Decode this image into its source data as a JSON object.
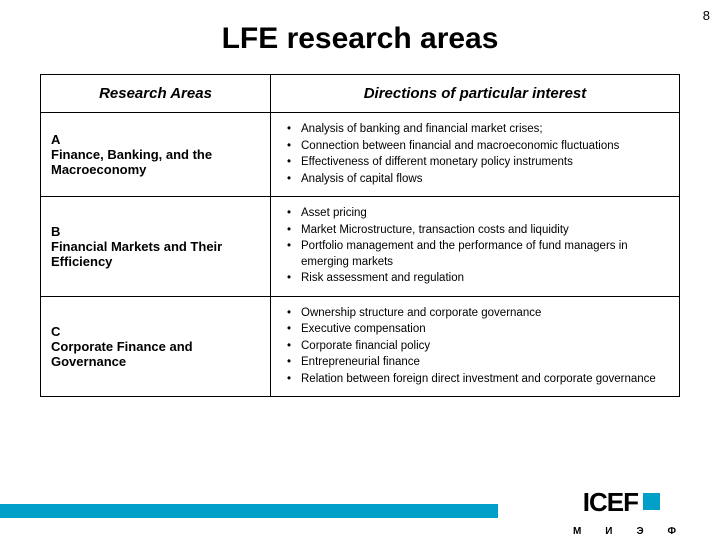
{
  "page_number": "8",
  "title": "LFE research areas",
  "table": {
    "header_left": "Research Areas",
    "header_right": "Directions of particular interest",
    "rows": [
      {
        "letter": "A",
        "area": "Finance, Banking, and the Macroeconomy",
        "items": [
          "Analysis of banking and financial market crises;",
          "Connection between financial and macroeconomic fluctuations",
          "Effectiveness of different monetary policy instruments",
          "Analysis of capital flows"
        ]
      },
      {
        "letter": "B",
        "area": "Financial Markets and Their Efficiency",
        "items": [
          "Asset pricing",
          "Market Microstructure, transaction costs and liquidity",
          "Portfolio management and the performance of fund managers in emerging markets",
          "Risk assessment and regulation"
        ]
      },
      {
        "letter": "C",
        "area": "Corporate Finance and Governance",
        "items": [
          "Ownership structure and corporate governance",
          "Executive compensation",
          "Corporate financial policy",
          "Entrepreneurial finance",
          "Relation between foreign direct investment and corporate governance"
        ]
      }
    ]
  },
  "logo": {
    "letters": "ICEF",
    "small_row": "МИЭФ"
  },
  "colors": {
    "teal": "#00a0c8",
    "black": "#000000",
    "white": "#ffffff"
  }
}
